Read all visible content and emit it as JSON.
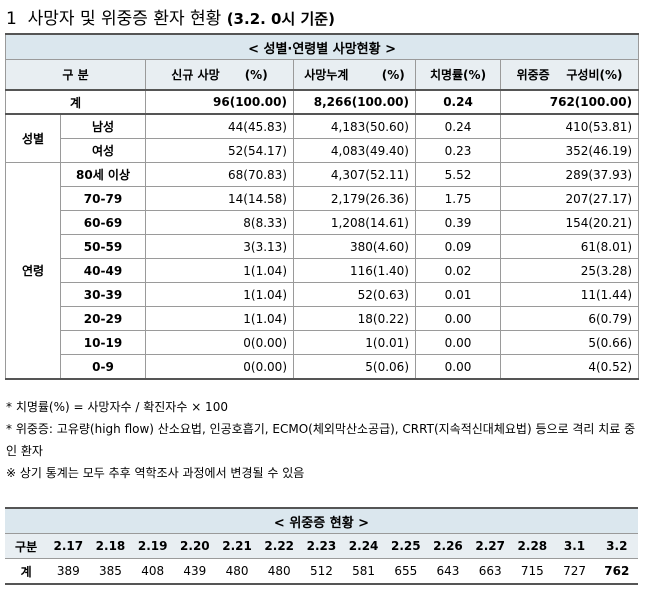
{
  "header": {
    "number": "1",
    "title": "사망자 및 위중증 환자 현황",
    "date": "(3.2. 0시 기준)"
  },
  "death_table": {
    "title": "< 성별·연령별 사망현황 >",
    "columns": [
      "구 분",
      "신규 사망      (%)",
      "사망누계        (%)",
      "치명률(%)",
      "위중증    구성비(%)"
    ],
    "total": {
      "label": "계",
      "cells": [
        "96(100.00)",
        "8,266(100.00)",
        "0.24",
        "762(100.00)"
      ]
    },
    "groups": [
      {
        "label": "성별",
        "rows": [
          {
            "label": "남성",
            "cells": [
              "44(45.83)",
              "4,183(50.60)",
              "0.24",
              "410(53.81)"
            ]
          },
          {
            "label": "여성",
            "cells": [
              "52(54.17)",
              "4,083(49.40)",
              "0.23",
              "352(46.19)"
            ]
          }
        ]
      },
      {
        "label": "연령",
        "rows": [
          {
            "label": "80세 이상",
            "cells": [
              "68(70.83)",
              "4,307(52.11)",
              "5.52",
              "289(37.93)"
            ]
          },
          {
            "label": "70-79",
            "cells": [
              "14(14.58)",
              "2,179(26.36)",
              "1.75",
              "207(27.17)"
            ]
          },
          {
            "label": "60-69",
            "cells": [
              "8(8.33)",
              "1,208(14.61)",
              "0.39",
              "154(20.21)"
            ]
          },
          {
            "label": "50-59",
            "cells": [
              "3(3.13)",
              "380(4.60)",
              "0.09",
              "61(8.01)"
            ]
          },
          {
            "label": "40-49",
            "cells": [
              "1(1.04)",
              "116(1.40)",
              "0.02",
              "25(3.28)"
            ]
          },
          {
            "label": "30-39",
            "cells": [
              "1(1.04)",
              "52(0.63)",
              "0.01",
              "11(1.44)"
            ]
          },
          {
            "label": "20-29",
            "cells": [
              "1(1.04)",
              "18(0.22)",
              "0.00",
              "6(0.79)"
            ]
          },
          {
            "label": "10-19",
            "cells": [
              "0(0.00)",
              "1(0.01)",
              "0.00",
              "5(0.66)"
            ]
          },
          {
            "label": "0-9",
            "cells": [
              "0(0.00)",
              "5(0.06)",
              "0.00",
              "4(0.52)"
            ]
          }
        ]
      }
    ]
  },
  "notes": [
    "* 치명률(%) = 사망자수 / 확진자수 × 100",
    "* 위중증: 고유량(high flow) 산소요법, 인공호흡기, ECMO(체외막산소공급), CRRT(지속적신대체요법) 등으로 격리 치료 중인 환자",
    "※ 상기 통계는 모두 추후 역학조사 과정에서 변경될 수 있음"
  ],
  "critical_table": {
    "title": "< 위중증 현황 >",
    "header_label": "구분",
    "dates": [
      "2.17",
      "2.18",
      "2.19",
      "2.20",
      "2.21",
      "2.22",
      "2.23",
      "2.24",
      "2.25",
      "2.26",
      "2.27",
      "2.28",
      "3.1",
      "3.2"
    ],
    "row_label": "계",
    "values": [
      389,
      385,
      408,
      439,
      480,
      480,
      512,
      581,
      655,
      643,
      663,
      715,
      727,
      762
    ]
  }
}
